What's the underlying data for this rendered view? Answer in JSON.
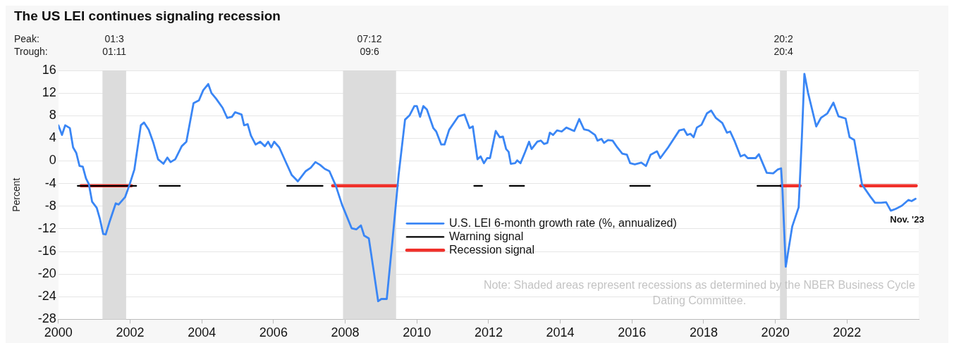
{
  "chart_data": {
    "type": "line",
    "title": "The US LEI continues signaling recession",
    "ylabel": "Percent",
    "xlim": [
      2000,
      2024
    ],
    "xticks": [
      2000,
      2002,
      2004,
      2006,
      2008,
      2010,
      2012,
      2014,
      2016,
      2018,
      2020,
      2022
    ],
    "ylim": [
      -28,
      16
    ],
    "yticks": [
      -28,
      -24,
      -20,
      -16,
      -12,
      -8,
      -4,
      0,
      4,
      8,
      12,
      16
    ],
    "grid": "y",
    "legend": "bottom",
    "series": [
      {
        "name": "U.S. LEI 6-month growth rate (%, annualized)",
        "color": "#3a86f5",
        "x": [
          2000.0,
          2000.1,
          2000.19,
          2000.32,
          2000.41,
          2000.5,
          2000.59,
          2000.68,
          2000.77,
          2000.85,
          2000.94,
          2001.07,
          2001.16,
          2001.25,
          2001.32,
          2001.42,
          2001.6,
          2001.68,
          2001.86,
          2001.99,
          2002.12,
          2002.3,
          2002.39,
          2002.52,
          2002.65,
          2002.78,
          2002.93,
          2003.04,
          2003.13,
          2003.26,
          2003.44,
          2003.57,
          2003.77,
          2003.92,
          2004.04,
          2004.18,
          2004.27,
          2004.4,
          2004.58,
          2004.71,
          2004.84,
          2004.93,
          2005.11,
          2005.18,
          2005.28,
          2005.37,
          2005.5,
          2005.63,
          2005.76,
          2005.85,
          2005.94,
          2006.02,
          2006.16,
          2006.33,
          2006.51,
          2006.68,
          2006.9,
          2007.04,
          2007.17,
          2007.3,
          2007.43,
          2007.56,
          2007.74,
          2007.91,
          2008.18,
          2008.31,
          2008.44,
          2008.53,
          2008.66,
          2008.79,
          2008.92,
          2009.01,
          2009.16,
          2009.32,
          2009.49,
          2009.67,
          2009.8,
          2009.93,
          2010.0,
          2010.09,
          2010.18,
          2010.28,
          2010.46,
          2010.54,
          2010.68,
          2010.77,
          2010.9,
          2011.16,
          2011.33,
          2011.47,
          2011.56,
          2011.69,
          2011.78,
          2011.87,
          2011.96,
          2012.04,
          2012.2,
          2012.31,
          2012.4,
          2012.49,
          2012.56,
          2012.62,
          2012.74,
          2012.8,
          2012.89,
          2013.02,
          2013.13,
          2013.2,
          2013.36,
          2013.46,
          2013.55,
          2013.64,
          2013.71,
          2013.8,
          2013.91,
          2014.04,
          2014.17,
          2014.31,
          2014.39,
          2014.53,
          2014.66,
          2014.79,
          2014.97,
          2015.04,
          2015.15,
          2015.22,
          2015.33,
          2015.46,
          2015.59,
          2015.73,
          2015.86,
          2015.95,
          2016.08,
          2016.26,
          2016.39,
          2016.52,
          2016.7,
          2016.79,
          2017.01,
          2017.32,
          2017.45,
          2017.54,
          2017.63,
          2017.72,
          2017.81,
          2017.94,
          2018.09,
          2018.21,
          2018.34,
          2018.52,
          2018.65,
          2018.74,
          2018.87,
          2019.03,
          2019.14,
          2019.23,
          2019.45,
          2019.54,
          2019.76,
          2019.94,
          2020.07,
          2020.16,
          2020.2,
          2020.29,
          2020.47,
          2020.65,
          2020.74,
          2020.81,
          2020.91,
          2021.14,
          2021.27,
          2021.45,
          2021.62,
          2021.76,
          2021.96,
          2022.07,
          2022.2,
          2022.42,
          2022.65,
          2022.78,
          2022.95,
          2023.09,
          2023.22,
          2023.35,
          2023.53,
          2023.71,
          2023.8,
          2023.91
        ],
        "values": [
          6.3,
          4.6,
          6.3,
          5.8,
          2.4,
          1.4,
          -0.9,
          -1,
          -3.1,
          -4.1,
          -7.2,
          -8.3,
          -10.3,
          -12.9,
          -13,
          -10.9,
          -7.5,
          -7.7,
          -6.4,
          -4.1,
          -1.5,
          6.3,
          6.8,
          5.5,
          3.2,
          0.3,
          -0.5,
          0.6,
          -0.2,
          0.3,
          2.6,
          3.4,
          10.2,
          10.7,
          12.5,
          13.6,
          12,
          11,
          9.4,
          7.6,
          7.8,
          8.6,
          8.2,
          6.3,
          6.5,
          4.5,
          2.9,
          3.4,
          2.6,
          3.4,
          2.4,
          3.4,
          2.4,
          0,
          -2.5,
          -3.6,
          -1.8,
          -1.2,
          -0.2,
          -0.7,
          -1.4,
          -1.8,
          -4.4,
          -7.7,
          -11.9,
          -12.1,
          -11.4,
          -13.2,
          -13.7,
          -19.2,
          -24.8,
          -24.4,
          -24.4,
          -14,
          -2.5,
          7.3,
          8.1,
          9.7,
          9.7,
          7.8,
          9.7,
          9.1,
          5.8,
          5.2,
          2.9,
          2.9,
          5.5,
          7.9,
          8.2,
          5.8,
          6.1,
          0.3,
          0.8,
          -0.4,
          0.5,
          0.5,
          5.3,
          4.2,
          4.3,
          2.1,
          1.6,
          -0.5,
          -0.4,
          0.1,
          -0.4,
          1.6,
          3.4,
          2.1,
          3.4,
          3.6,
          3,
          3.2,
          5,
          4.6,
          5.4,
          5.2,
          5.9,
          5.5,
          5.3,
          7.4,
          5.6,
          5.4,
          4.6,
          3.6,
          3.9,
          3.2,
          3.7,
          3.6,
          2.4,
          1.3,
          1.1,
          -0.4,
          -0.6,
          -0.3,
          -0.9,
          1.1,
          1.7,
          0.5,
          2.4,
          5.4,
          5.6,
          4.6,
          4.8,
          4.2,
          5.9,
          6.4,
          8.4,
          8.9,
          7.6,
          6.7,
          5,
          5.2,
          3.4,
          0.8,
          1.1,
          0.5,
          0.5,
          1.2,
          -2.1,
          -2.2,
          -1.5,
          -1.3,
          -5.3,
          -18.7,
          -11.6,
          -8.2,
          4.2,
          15.4,
          12.1,
          6.1,
          7.6,
          8.4,
          10.3,
          7.9,
          7.5,
          4.2,
          3.7,
          -4.2,
          -6.3,
          -7.4,
          -7.4,
          -7.3,
          -8.8,
          -8.5,
          -7.9,
          -6.9,
          -7.1,
          -6.7
        ]
      },
      {
        "name": "Warning signal",
        "color": "#000000",
        "x": [
          2000.54,
          2002.17,
          2002.5,
          2002.82,
          2003.39,
          2005,
          2006.38,
          2007.37,
          2009,
          2011.6,
          2011.82,
          2012.2,
          2012.59,
          2012.99,
          2014,
          2015.95,
          2016.5,
          2018,
          2019.5,
          2020.16
        ],
        "values": [
          -4.4,
          -4.4,
          null,
          -4.4,
          -4.4,
          null,
          -4.4,
          -4.4,
          null,
          -4.4,
          -4.4,
          null,
          -4.4,
          -4.4,
          null,
          -4.4,
          -4.4,
          null,
          -4.4,
          -4.4
        ]
      },
      {
        "name": "Recession signal",
        "color": "#f0302a",
        "x": [
          2000.63,
          2002.04,
          2005,
          2007.65,
          2009.45,
          2015,
          2020.16,
          2020.69,
          2021.5,
          2022.38,
          2023.93
        ],
        "values": [
          -4.4,
          -4.4,
          null,
          -4.4,
          -4.4,
          null,
          -4.4,
          -4.4,
          null,
          -4.4,
          -4.4
        ]
      }
    ],
    "bands": [
      {
        "axis": "x",
        "from": 2001.23,
        "to": 2001.89,
        "label": "01:3\n01:11",
        "color": "#dcdcdc"
      },
      {
        "axis": "x",
        "from": 2007.94,
        "to": 2009.42,
        "label": "07:12\n09:6",
        "color": "#dcdcdc"
      },
      {
        "axis": "x",
        "from": 2020.13,
        "to": 2020.32,
        "label": "20:2\n20:4",
        "color": "#dcdcdc"
      }
    ],
    "annotations": [
      "Peak:",
      "Trough:",
      {
        "text": "Nov. '23",
        "x": 2023.91,
        "y": -6.7
      },
      "Note: Shaded areas represent recessions as determined by the NBER Business Cycle Dating Committee."
    ]
  }
}
